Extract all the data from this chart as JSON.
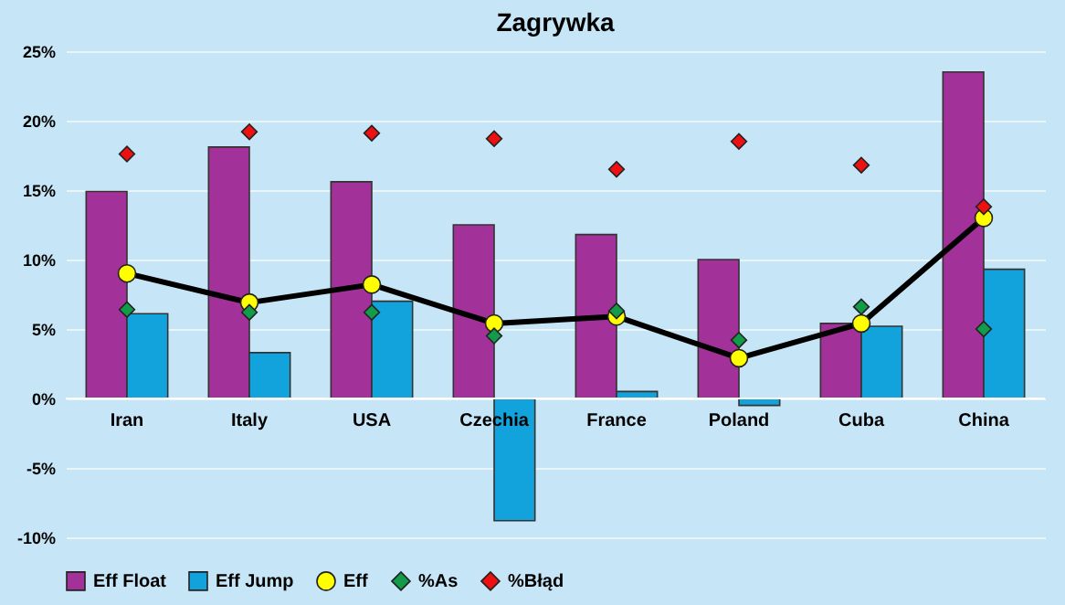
{
  "chart_data": {
    "type": "bar",
    "title": "Zagrywka",
    "categories": [
      "Iran",
      "Italy",
      "USA",
      "Czechia",
      "France",
      "Poland",
      "Cuba",
      "China"
    ],
    "series": [
      {
        "name": "Eff Float",
        "color": "#a3319a",
        "values": [
          14.9,
          18.1,
          15.6,
          12.5,
          11.8,
          10.0,
          5.4,
          23.5
        ]
      },
      {
        "name": "Eff Jump",
        "color": "#13a3dc",
        "values": [
          6.1,
          3.3,
          7.0,
          -8.8,
          0.5,
          -0.5,
          5.2,
          9.3
        ]
      },
      {
        "name": "Eff",
        "type": "line",
        "color": "#ffff00",
        "marker": "circle",
        "values": [
          9.0,
          6.9,
          8.2,
          5.4,
          5.9,
          2.9,
          5.4,
          13.0
        ]
      },
      {
        "name": "%As",
        "type": "scatter",
        "color": "#129b48",
        "marker": "diamond",
        "values": [
          6.4,
          6.2,
          6.2,
          4.5,
          6.3,
          4.2,
          6.6,
          5.0
        ]
      },
      {
        "name": "%Błąd",
        "type": "scatter",
        "color": "#ee1111",
        "marker": "diamond",
        "values": [
          17.6,
          19.2,
          19.1,
          18.7,
          16.5,
          18.5,
          16.8,
          13.8
        ]
      }
    ],
    "ylim": [
      -10,
      25
    ],
    "yticks": [
      {
        "value": -10,
        "label": "-10%"
      },
      {
        "value": -5,
        "label": "-5%"
      },
      {
        "value": 0,
        "label": "0%"
      },
      {
        "value": 5,
        "label": "5%"
      },
      {
        "value": 10,
        "label": "10%"
      },
      {
        "value": 15,
        "label": "15%"
      },
      {
        "value": 20,
        "label": "20%"
      },
      {
        "value": 25,
        "label": "25%"
      }
    ],
    "grid": "y",
    "legend": "bottom"
  }
}
